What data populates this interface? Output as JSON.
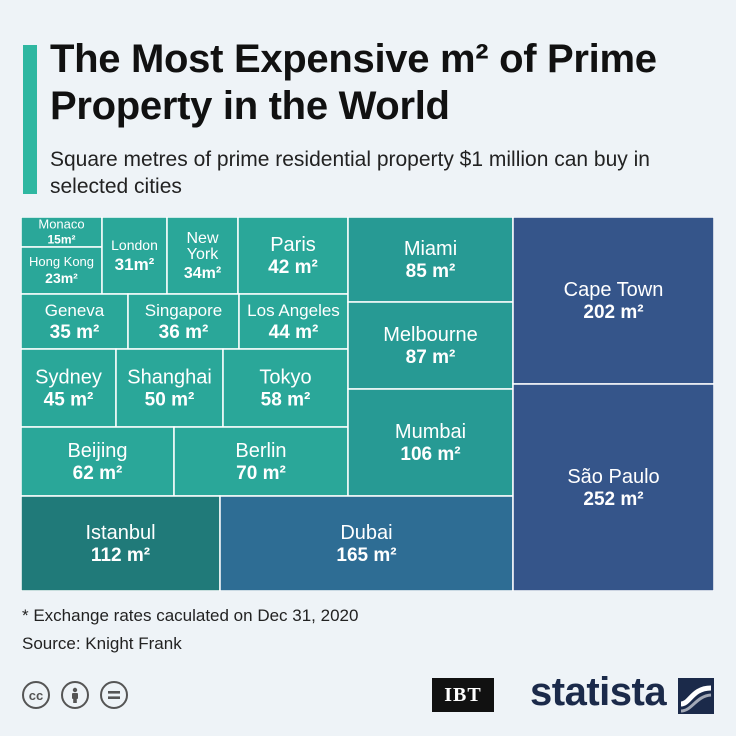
{
  "header": {
    "title": "The Most Expensive m² of Prime Property in the World",
    "subtitle": "Square metres of prime residential property $1 million can buy in selected cities"
  },
  "footer": {
    "footnote": "* Exchange rates caculated on Dec 31, 2020",
    "source": "Source: Knight Frank",
    "brand_ibt": "IBT",
    "brand_statista": "statista"
  },
  "colors": {
    "accent": "#2fb7a1",
    "teal_light": "#2aa799",
    "teal_mid": "#279a94",
    "teal_dark": "#207a79",
    "blue_mid": "#2e6d94",
    "blue_dark": "#35558a"
  },
  "icons": [
    "creative-commons-icon",
    "attribution-icon",
    "no-derivatives-icon"
  ],
  "chart_data": {
    "type": "treemap",
    "unit": "m²",
    "items": [
      {
        "city": "Monaco",
        "label": "15m²",
        "value": 15
      },
      {
        "city": "Hong Kong",
        "label": "23m²",
        "value": 23
      },
      {
        "city": "London",
        "label": "31m²",
        "value": 31
      },
      {
        "city": "New York",
        "label": "34m²",
        "value": 34
      },
      {
        "city": "Paris",
        "label": "42 m²",
        "value": 42
      },
      {
        "city": "Geneva",
        "label": "35 m²",
        "value": 35
      },
      {
        "city": "Singapore",
        "label": "36 m²",
        "value": 36
      },
      {
        "city": "Los Angeles",
        "label": "44 m²",
        "value": 44
      },
      {
        "city": "Sydney",
        "label": "45 m²",
        "value": 45
      },
      {
        "city": "Shanghai",
        "label": "50 m²",
        "value": 50
      },
      {
        "city": "Tokyo",
        "label": "58 m²",
        "value": 58
      },
      {
        "city": "Beijing",
        "label": "62 m²",
        "value": 62
      },
      {
        "city": "Berlin",
        "label": "70 m²",
        "value": 70
      },
      {
        "city": "Miami",
        "label": "85 m²",
        "value": 85
      },
      {
        "city": "Melbourne",
        "label": "87 m²",
        "value": 87
      },
      {
        "city": "Mumbai",
        "label": "106 m²",
        "value": 106
      },
      {
        "city": "Istanbul",
        "label": "112 m²",
        "value": 112
      },
      {
        "city": "Dubai",
        "label": "165 m²",
        "value": 165
      },
      {
        "city": "Cape Town",
        "label": "202 m²",
        "value": 202
      },
      {
        "city": "São Paulo",
        "label": "252 m²",
        "value": 252
      }
    ]
  }
}
